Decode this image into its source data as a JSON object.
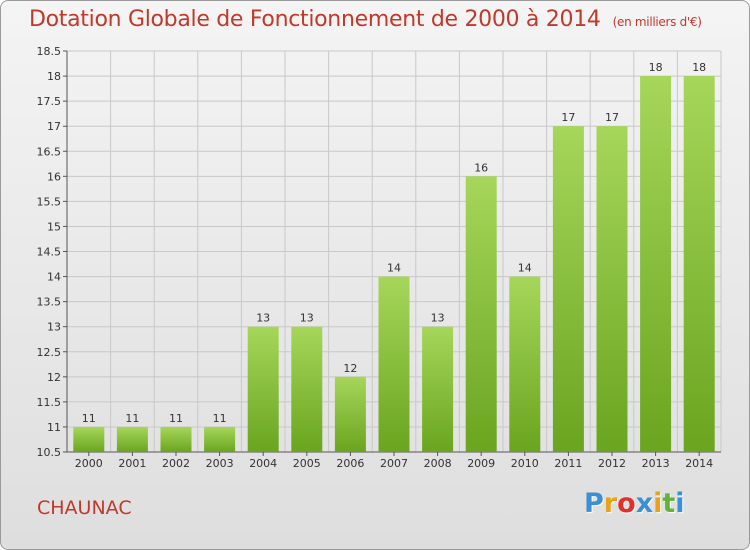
{
  "header": {
    "title": "Dotation Globale de Fonctionnement de 2000 à 2014",
    "unit": "(en milliers d'€)"
  },
  "footer": {
    "commune": "CHAUNAC",
    "logo_text": "Proxiti"
  },
  "colors": {
    "title": "#c0392b",
    "bar_light": "#a6d65a",
    "bar_dark": "#6aa51f",
    "grid": "#c8c8c8",
    "logo": [
      "#3b8fd4",
      "#e8a21b",
      "#e0302a",
      "#3b8fd4",
      "#e8a21b",
      "#62b33a",
      "#3b8fd4"
    ]
  },
  "chart_data": {
    "type": "bar",
    "categories": [
      "2000",
      "2001",
      "2002",
      "2003",
      "2004",
      "2005",
      "2006",
      "2007",
      "2008",
      "2009",
      "2010",
      "2011",
      "2012",
      "2013",
      "2014"
    ],
    "values": [
      11,
      11,
      11,
      11,
      13,
      13,
      12,
      14,
      13,
      16,
      14,
      17,
      17,
      18,
      18
    ],
    "value_labels": [
      "11",
      "11",
      "11",
      "11",
      "13",
      "13",
      "12",
      "14",
      "13",
      "16",
      "14",
      "17",
      "17",
      "18",
      "18"
    ],
    "ylim": [
      10.5,
      18.5
    ],
    "yticks": [
      10.5,
      11,
      11.5,
      12,
      12.5,
      13,
      13.5,
      14,
      14.5,
      15,
      15.5,
      16,
      16.5,
      17,
      17.5,
      18,
      18.5
    ],
    "ytick_labels": [
      "10.5",
      "11",
      "11.5",
      "12",
      "12.5",
      "13",
      "13.5",
      "14",
      "14.5",
      "15",
      "15.5",
      "16",
      "16.5",
      "17",
      "17.5",
      "18",
      "18.5"
    ],
    "grid": true
  }
}
